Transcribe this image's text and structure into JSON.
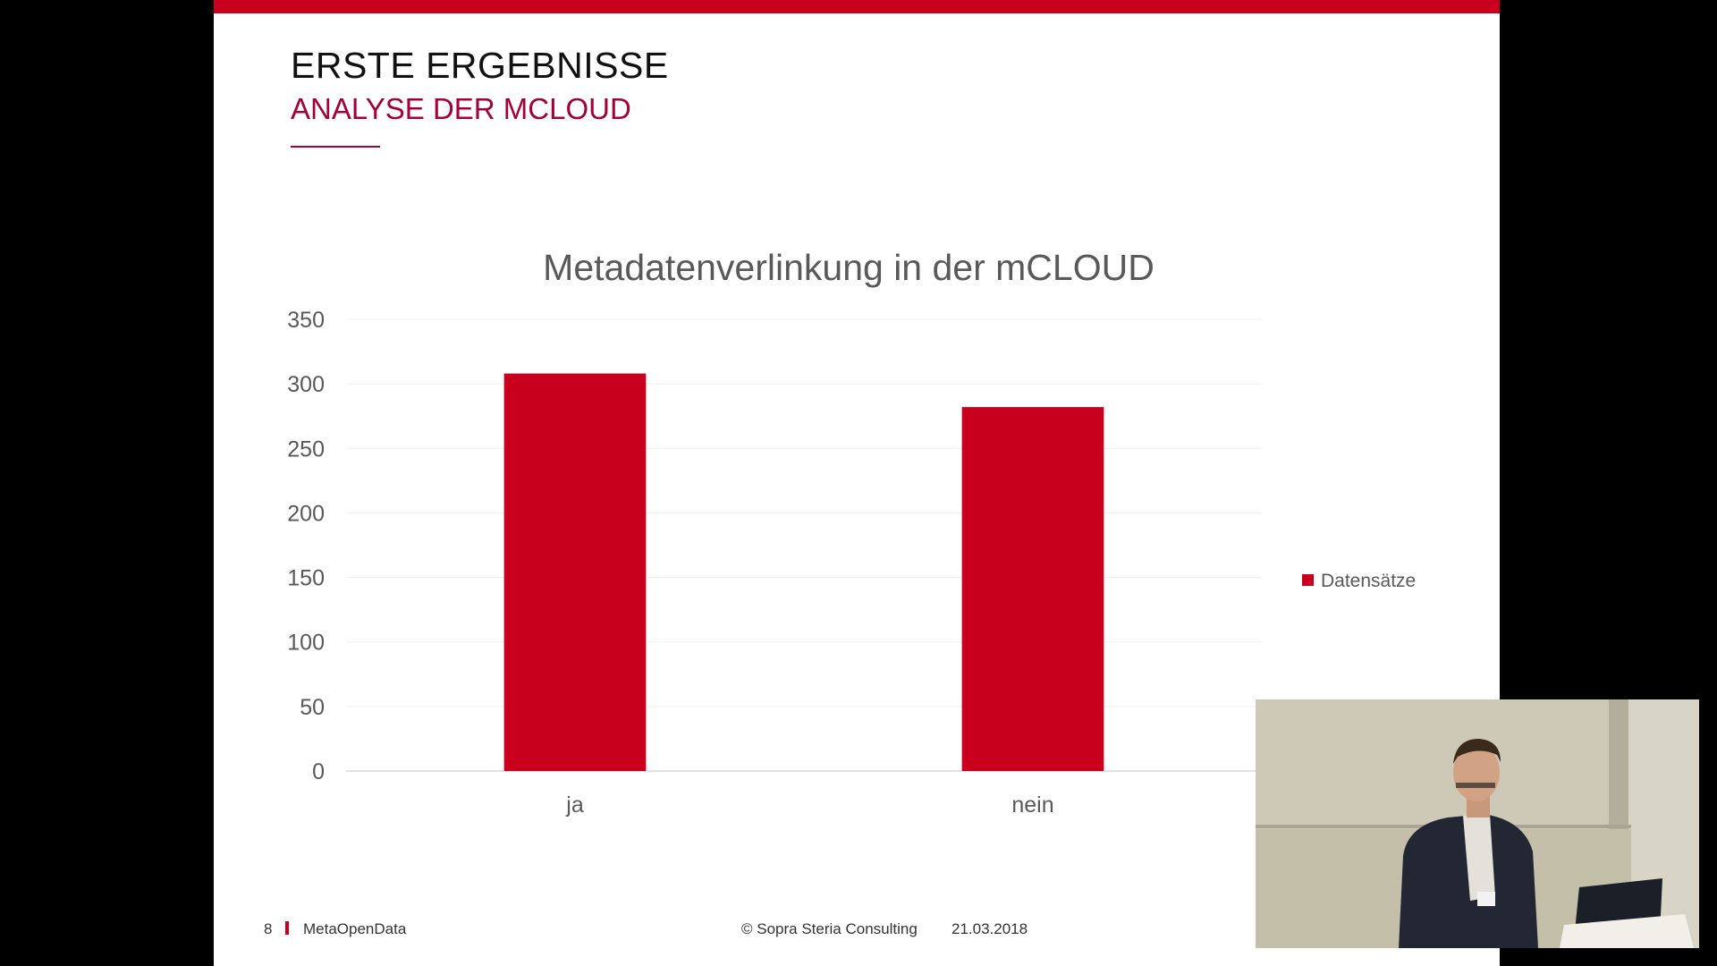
{
  "slide": {
    "title": "ERSTE ERGEBNISSE",
    "subtitle": "ANALYSE DER MCLOUD",
    "accent_color": "#c8001e",
    "subtitle_color": "#a4003a"
  },
  "chart_data": {
    "type": "bar",
    "title": "Metadatenverlinkung in der mCLOUD",
    "categories": [
      "ja",
      "nein"
    ],
    "series": [
      {
        "name": "Datensätze",
        "values": [
          308,
          282
        ],
        "color": "#c8001e"
      }
    ],
    "ylim": [
      0,
      350
    ],
    "yticks": [
      0,
      50,
      100,
      150,
      200,
      250,
      300,
      350
    ],
    "xlabel": "",
    "ylabel": "",
    "grid": true,
    "legend_position": "right"
  },
  "footer": {
    "page_number": "8",
    "project": "MetaOpenData",
    "copyright": "© Sopra Steria Consulting",
    "date": "21.03.2018"
  }
}
